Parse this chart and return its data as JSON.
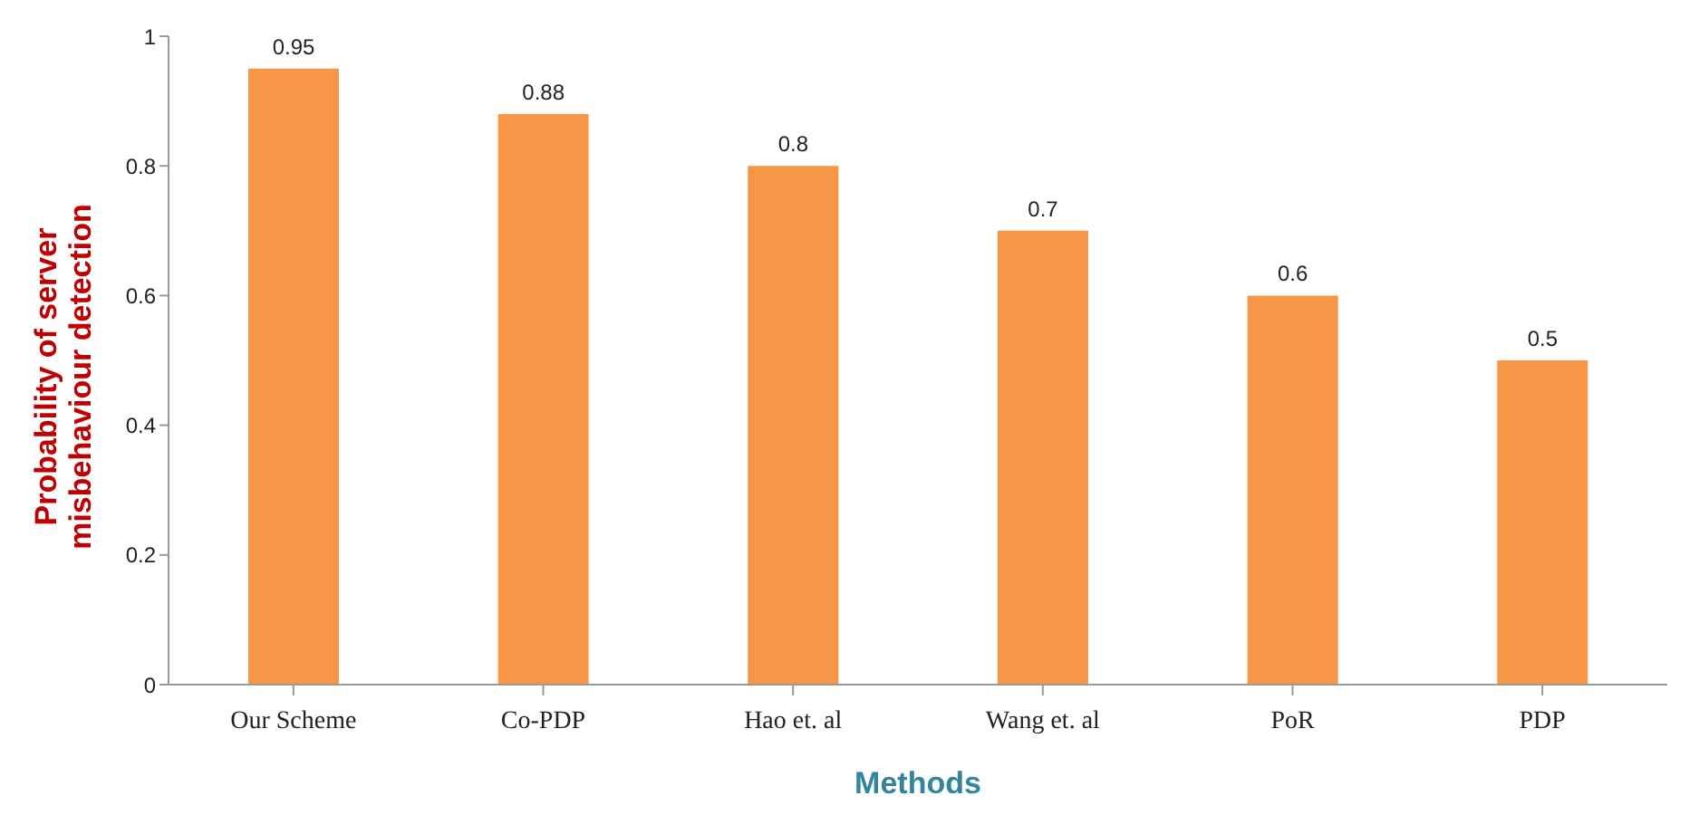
{
  "chart_data": {
    "type": "bar",
    "xlabel": "Methods",
    "ylabel": "Probability  of server misbehaviour detection",
    "categories": [
      "Our Scheme",
      "Co-PDP",
      "Hao et. al",
      "Wang et. al",
      "PoR",
      "PDP"
    ],
    "values": [
      0.95,
      0.88,
      0.8,
      0.7,
      0.6,
      0.5
    ],
    "color": "#f79646",
    "ylim": [
      0,
      1
    ],
    "yticks": [
      0,
      0.2,
      0.4,
      0.6,
      0.8,
      1
    ],
    "grid": false,
    "data_labels": true
  }
}
